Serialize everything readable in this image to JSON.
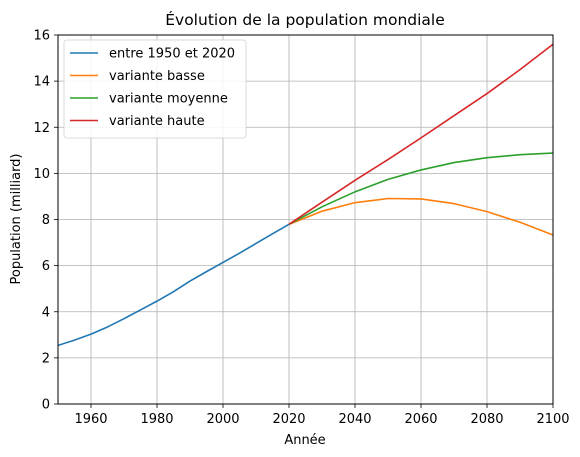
{
  "chart_data": {
    "type": "line",
    "title": "Évolution de la population mondiale",
    "xlabel": "Année",
    "ylabel": "Population (milliard)",
    "xlim": [
      1950,
      2100
    ],
    "ylim": [
      0,
      16
    ],
    "xticks": [
      1960,
      1980,
      2000,
      2020,
      2040,
      2060,
      2080,
      2100
    ],
    "yticks": [
      0,
      2,
      4,
      6,
      8,
      10,
      12,
      14,
      16
    ],
    "grid": true,
    "legend_position": "top-left",
    "series": [
      {
        "name": "entre 1950 et 2020",
        "color": "#1f77b4",
        "x": [
          1950,
          1955,
          1960,
          1965,
          1970,
          1975,
          1980,
          1985,
          1990,
          1995,
          2000,
          2005,
          2010,
          2015,
          2020
        ],
        "y": [
          2.54,
          2.77,
          3.03,
          3.34,
          3.7,
          4.08,
          4.46,
          4.87,
          5.33,
          5.74,
          6.14,
          6.54,
          6.96,
          7.38,
          7.79
        ]
      },
      {
        "name": "variante basse",
        "color": "#ff7f0e",
        "x": [
          2020,
          2030,
          2040,
          2050,
          2060,
          2070,
          2080,
          2090,
          2100
        ],
        "y": [
          7.79,
          8.36,
          8.73,
          8.91,
          8.89,
          8.69,
          8.34,
          7.88,
          7.33
        ]
      },
      {
        "name": "variante moyenne",
        "color": "#2ca02c",
        "x": [
          2020,
          2030,
          2040,
          2050,
          2060,
          2070,
          2080,
          2090,
          2100
        ],
        "y": [
          7.79,
          8.55,
          9.2,
          9.74,
          10.15,
          10.47,
          10.68,
          10.81,
          10.88
        ]
      },
      {
        "name": "variante haute",
        "color": "#d62728",
        "x": [
          2020,
          2030,
          2040,
          2050,
          2060,
          2070,
          2080,
          2090,
          2100
        ],
        "y": [
          7.79,
          8.75,
          9.7,
          10.6,
          11.54,
          12.5,
          13.46,
          14.5,
          15.6
        ]
      }
    ]
  }
}
